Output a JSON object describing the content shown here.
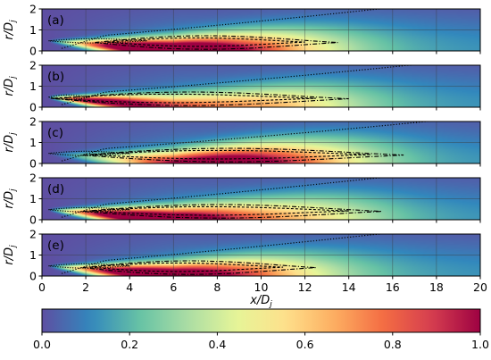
{
  "chart_data": {
    "type": "heatmap",
    "panels": [
      {
        "label": "(a)",
        "core_end": 12.0,
        "potential_core_end": 2.6,
        "peak_x": 5.0,
        "peak": 0.95,
        "spread": 0.085
      },
      {
        "label": "(b)",
        "core_end": 12.5,
        "potential_core_end": 0.0,
        "peak_x": 1.5,
        "peak": 1.0,
        "spread": 0.075
      },
      {
        "label": "(c)",
        "core_end": 15.0,
        "potential_core_end": 1.8,
        "peak_x": 8.0,
        "peak": 0.55,
        "spread": 0.07
      },
      {
        "label": "(d)",
        "core_end": 14.0,
        "potential_core_end": 1.8,
        "peak_x": 4.0,
        "peak": 0.9,
        "spread": 0.085
      },
      {
        "label": "(e)",
        "core_end": 11.0,
        "potential_core_end": 1.8,
        "peak_x": 4.5,
        "peak": 0.85,
        "spread": 0.085
      }
    ],
    "xlabel": "x/D_j",
    "ylabel": "r/D_j",
    "xlim": [
      0,
      20
    ],
    "ylim": [
      0,
      2
    ],
    "xticks": [
      "0",
      "2",
      "4",
      "6",
      "8",
      "10",
      "12",
      "14",
      "16",
      "18",
      "20"
    ],
    "yticks": [
      "0",
      "1",
      "2"
    ],
    "grid": true,
    "colorbar": {
      "range": [
        0.0,
        1.0
      ],
      "ticks": [
        "0.0",
        "0.2",
        "0.4",
        "0.6",
        "0.8",
        "1.0"
      ],
      "colormap": "spectral_r",
      "stops": [
        "#5e4fa2",
        "#3288bd",
        "#66c2a5",
        "#abdda4",
        "#e6f598",
        "#fee08b",
        "#fdae61",
        "#f46d43",
        "#d53e4f",
        "#9e0142"
      ]
    }
  }
}
